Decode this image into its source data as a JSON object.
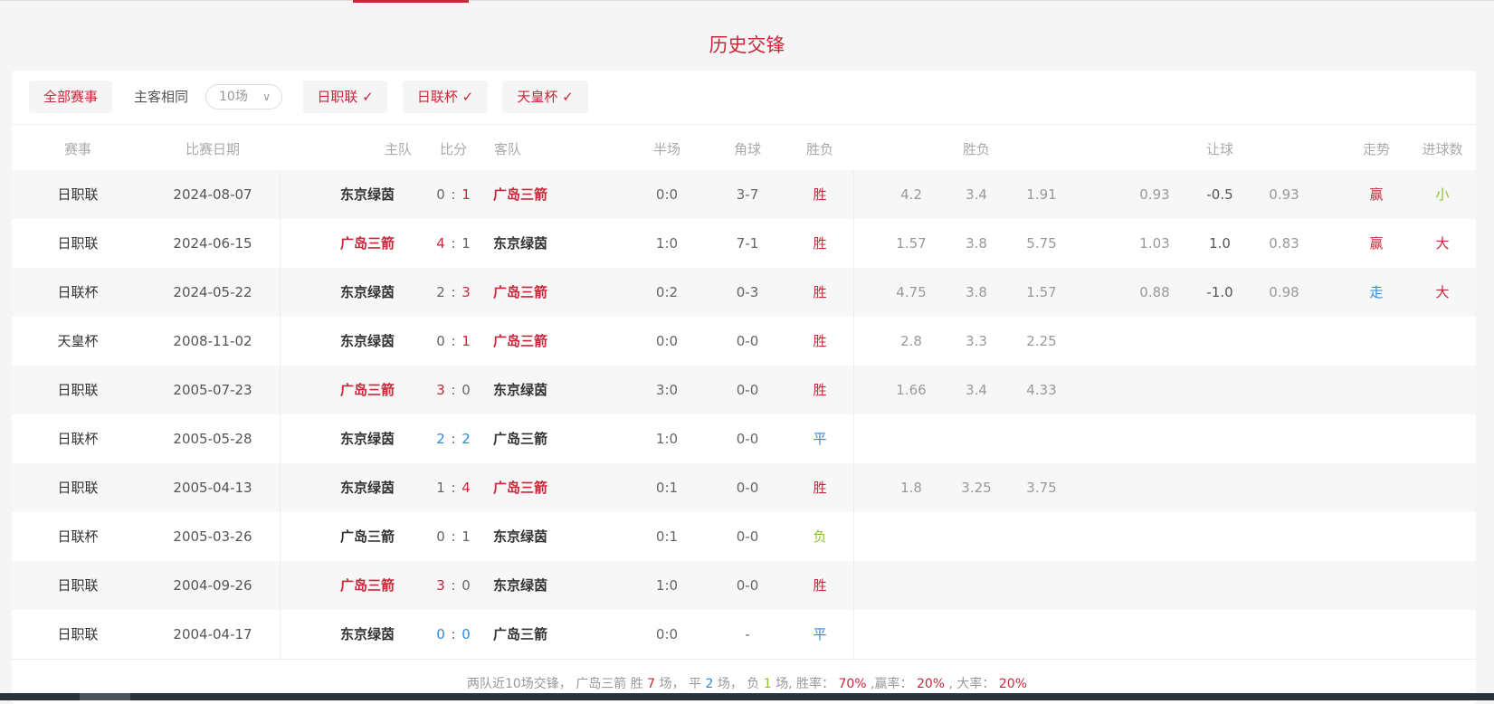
{
  "title": "历史交锋",
  "filters": {
    "all_label": "全部赛事",
    "same_home_label": "主客相同",
    "count_select": "10场",
    "leagues": [
      "日职联 ✓",
      "日联杯 ✓",
      "天皇杯 ✓"
    ]
  },
  "headers": {
    "league": "赛事",
    "date": "比赛日期",
    "home": "主队",
    "score": "比分",
    "away": "客队",
    "half": "半场",
    "corner": "角球",
    "result": "胜负",
    "odds_group": "胜负",
    "handicap_group": "让球",
    "trend": "走势",
    "goals": "进球数"
  },
  "colors": {
    "red": "#c8283a",
    "blue": "#2e8ae6",
    "green": "#8bc322",
    "text": "#333333",
    "muted": "#999999"
  },
  "rows": [
    {
      "league": "日职联",
      "date": "2024-08-07",
      "home": "东京绿茵",
      "hs": "0",
      "as": "1",
      "away": "广岛三箭",
      "winner": "away",
      "half": "0:0",
      "corner": "3-7",
      "result": "胜",
      "odds": [
        "4.2",
        "3.4",
        "1.91"
      ],
      "handicap": [
        "0.93",
        "-0.5",
        "0.93"
      ],
      "trend": "赢",
      "goals": "小"
    },
    {
      "league": "日职联",
      "date": "2024-06-15",
      "home": "广岛三箭",
      "hs": "4",
      "as": "1",
      "away": "东京绿茵",
      "winner": "home",
      "half": "1:0",
      "corner": "7-1",
      "result": "胜",
      "odds": [
        "1.57",
        "3.8",
        "5.75"
      ],
      "handicap": [
        "1.03",
        "1.0",
        "0.83"
      ],
      "trend": "赢",
      "goals": "大"
    },
    {
      "league": "日联杯",
      "date": "2024-05-22",
      "home": "东京绿茵",
      "hs": "2",
      "as": "3",
      "away": "广岛三箭",
      "winner": "away",
      "half": "0:2",
      "corner": "0-3",
      "result": "胜",
      "odds": [
        "4.75",
        "3.8",
        "1.57"
      ],
      "handicap": [
        "0.88",
        "-1.0",
        "0.98"
      ],
      "trend": "走",
      "goals": "大"
    },
    {
      "league": "天皇杯",
      "date": "2008-11-02",
      "home": "东京绿茵",
      "hs": "0",
      "as": "1",
      "away": "广岛三箭",
      "winner": "away",
      "half": "0:0",
      "corner": "0-0",
      "result": "胜",
      "odds": [
        "2.8",
        "3.3",
        "2.25"
      ],
      "handicap": [],
      "trend": "",
      "goals": ""
    },
    {
      "league": "日职联",
      "date": "2005-07-23",
      "home": "广岛三箭",
      "hs": "3",
      "as": "0",
      "away": "东京绿茵",
      "winner": "home",
      "half": "3:0",
      "corner": "0-0",
      "result": "胜",
      "odds": [
        "1.66",
        "3.4",
        "4.33"
      ],
      "handicap": [],
      "trend": "",
      "goals": ""
    },
    {
      "league": "日联杯",
      "date": "2005-05-28",
      "home": "东京绿茵",
      "hs": "2",
      "as": "2",
      "away": "广岛三箭",
      "winner": "draw",
      "half": "1:0",
      "corner": "0-0",
      "result": "平",
      "odds": [],
      "handicap": [],
      "trend": "",
      "goals": ""
    },
    {
      "league": "日职联",
      "date": "2005-04-13",
      "home": "东京绿茵",
      "hs": "1",
      "as": "4",
      "away": "广岛三箭",
      "winner": "away",
      "half": "0:1",
      "corner": "0-0",
      "result": "胜",
      "odds": [
        "1.8",
        "3.25",
        "3.75"
      ],
      "handicap": [],
      "trend": "",
      "goals": ""
    },
    {
      "league": "日联杯",
      "date": "2005-03-26",
      "home": "广岛三箭",
      "hs": "0",
      "as": "1",
      "away": "东京绿茵",
      "winner": "none",
      "half": "0:1",
      "corner": "0-0",
      "result": "负",
      "odds": [],
      "handicap": [],
      "trend": "",
      "goals": ""
    },
    {
      "league": "日职联",
      "date": "2004-09-26",
      "home": "广岛三箭",
      "hs": "3",
      "as": "0",
      "away": "东京绿茵",
      "winner": "home",
      "half": "1:0",
      "corner": "0-0",
      "result": "胜",
      "odds": [],
      "handicap": [],
      "trend": "",
      "goals": ""
    },
    {
      "league": "日职联",
      "date": "2004-04-17",
      "home": "东京绿茵",
      "hs": "0",
      "as": "0",
      "away": "广岛三箭",
      "winner": "draw",
      "half": "0:0",
      "corner": "-",
      "result": "平",
      "odds": [],
      "handicap": [],
      "trend": "",
      "goals": ""
    }
  ],
  "summary": {
    "prefix": "两队近10场交锋， 广岛三箭 胜",
    "wins": "7",
    "t1": "场， 平",
    "draws": "2",
    "t2": "场， 负",
    "losses": "1",
    "t3": "场, 胜率：",
    "win_rate": "70%",
    "t4": ",赢率：",
    "handicap_rate": "20%",
    "t5": ", 大率：",
    "over_rate": "20%"
  }
}
